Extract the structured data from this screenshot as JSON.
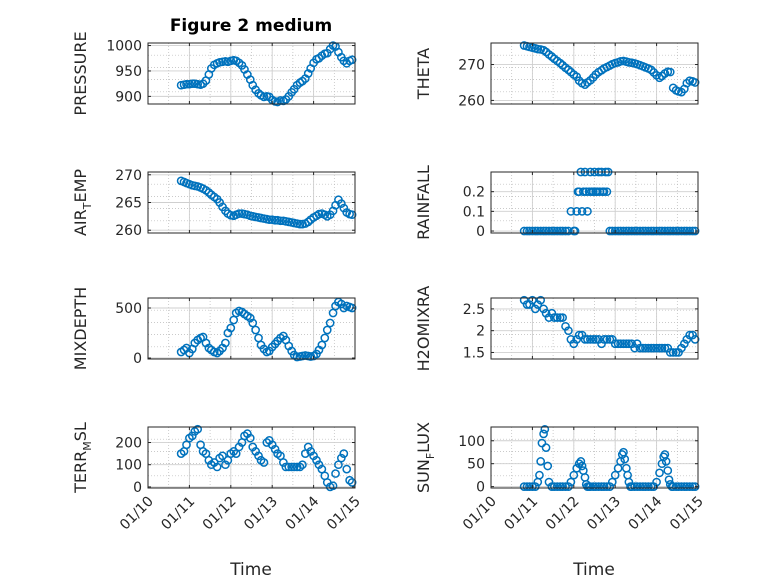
{
  "figure": {
    "title": "Figure 2 medium",
    "xlabel": "Time",
    "xticks": [
      "01/10",
      "01/11",
      "01/12",
      "01/13",
      "01/14",
      "01/15"
    ]
  },
  "colors": {
    "marker": "#0072BD",
    "axis": "#262626",
    "grid": "#b8b8b8",
    "background": "#ffffff"
  },
  "chart_data": [
    {
      "type": "scatter",
      "id": "pressure",
      "ylabel": "PRESSURE",
      "ylabel_sub": "",
      "ylabel_tail": "",
      "title": "Figure 2 medium",
      "xlim": [
        0,
        5
      ],
      "ylim": [
        885,
        1005
      ],
      "yticks": [
        900,
        950,
        1000
      ],
      "xticks_shown": false,
      "x": [
        0.8,
        0.87,
        0.93,
        1.0,
        1.07,
        1.13,
        1.2,
        1.27,
        1.33,
        1.4,
        1.47,
        1.53,
        1.6,
        1.67,
        1.73,
        1.8,
        1.87,
        1.93,
        2.0,
        2.07,
        2.13,
        2.2,
        2.27,
        2.33,
        2.4,
        2.47,
        2.53,
        2.6,
        2.67,
        2.73,
        2.8,
        2.87,
        2.93,
        3.0,
        3.07,
        3.13,
        3.2,
        3.27,
        3.33,
        3.4,
        3.47,
        3.53,
        3.6,
        3.67,
        3.73,
        3.8,
        3.87,
        3.93,
        4.0,
        4.07,
        4.13,
        4.2,
        4.27,
        4.33,
        4.4,
        4.47,
        4.53,
        4.6,
        4.67,
        4.73,
        4.8,
        4.87,
        4.93
      ],
      "y": [
        922,
        923,
        924,
        924,
        925,
        925,
        924,
        923,
        925,
        931,
        943,
        955,
        962,
        965,
        967,
        968,
        969,
        968,
        970,
        971,
        970,
        966,
        961,
        953,
        943,
        933,
        922,
        913,
        906,
        902,
        899,
        900,
        899,
        893,
        890,
        889,
        892,
        891,
        894,
        900,
        908,
        914,
        922,
        927,
        930,
        935,
        945,
        955,
        966,
        973,
        975,
        980,
        984,
        985,
        993,
        1000,
        998,
        987,
        977,
        970,
        965,
        970,
        972
      ]
    },
    {
      "type": "scatter",
      "id": "theta",
      "ylabel": "THETA",
      "ylabel_sub": "",
      "ylabel_tail": "",
      "xlim": [
        0,
        5
      ],
      "ylim": [
        259,
        276
      ],
      "yticks": [
        260,
        270
      ],
      "xticks_shown": false,
      "x": [
        0.8,
        0.87,
        0.93,
        1.0,
        1.07,
        1.13,
        1.2,
        1.27,
        1.33,
        1.4,
        1.47,
        1.53,
        1.6,
        1.67,
        1.73,
        1.8,
        1.87,
        1.93,
        2.0,
        2.07,
        2.13,
        2.2,
        2.27,
        2.33,
        2.4,
        2.47,
        2.53,
        2.6,
        2.67,
        2.73,
        2.8,
        2.87,
        2.93,
        3.0,
        3.07,
        3.13,
        3.2,
        3.27,
        3.33,
        3.4,
        3.47,
        3.53,
        3.6,
        3.67,
        3.73,
        3.8,
        3.87,
        3.93,
        4.0,
        4.07,
        4.13,
        4.2,
        4.27,
        4.33,
        4.4,
        4.47,
        4.53,
        4.6,
        4.67,
        4.73,
        4.8,
        4.87,
        4.93
      ],
      "y": [
        275.3,
        275.1,
        274.9,
        274.7,
        274.5,
        274.3,
        274.2,
        274.0,
        273.5,
        272.8,
        272.2,
        271.6,
        271.0,
        270.4,
        269.8,
        269.1,
        268.5,
        267.9,
        267.2,
        266.6,
        265.5,
        264.8,
        264.4,
        265.0,
        265.6,
        266.4,
        267.2,
        267.9,
        268.4,
        268.9,
        269.3,
        269.7,
        270.1,
        270.4,
        270.6,
        270.9,
        271.0,
        270.8,
        270.6,
        270.5,
        270.3,
        270.1,
        269.8,
        269.5,
        269.2,
        268.9,
        268.5,
        267.8,
        267.0,
        266.3,
        266.8,
        267.5,
        268.0,
        267.9,
        263.5,
        262.8,
        262.5,
        262.3,
        263.2,
        264.8,
        265.5,
        265.3,
        265.0
      ]
    },
    {
      "type": "scatter",
      "id": "air_temp",
      "ylabel": "AIR",
      "ylabel_sub": "T",
      "ylabel_tail": "EMP",
      "xlim": [
        0,
        5
      ],
      "ylim": [
        259.5,
        270.5
      ],
      "yticks": [
        260,
        265,
        270
      ],
      "xticks_shown": false,
      "x": [
        0.8,
        0.87,
        0.93,
        1.0,
        1.07,
        1.13,
        1.2,
        1.27,
        1.33,
        1.4,
        1.47,
        1.53,
        1.6,
        1.67,
        1.73,
        1.8,
        1.87,
        1.93,
        2.0,
        2.07,
        2.13,
        2.2,
        2.27,
        2.33,
        2.4,
        2.47,
        2.53,
        2.6,
        2.67,
        2.73,
        2.8,
        2.87,
        2.93,
        3.0,
        3.07,
        3.13,
        3.2,
        3.27,
        3.33,
        3.4,
        3.47,
        3.53,
        3.6,
        3.67,
        3.73,
        3.8,
        3.87,
        3.93,
        4.0,
        4.07,
        4.13,
        4.2,
        4.27,
        4.33,
        4.4,
        4.47,
        4.53,
        4.6,
        4.67,
        4.73,
        4.8,
        4.87,
        4.93
      ],
      "y": [
        268.9,
        268.7,
        268.5,
        268.3,
        268.1,
        268.0,
        267.9,
        267.7,
        267.5,
        267.2,
        266.8,
        266.4,
        266.0,
        265.6,
        265.0,
        264.2,
        263.5,
        263.0,
        262.7,
        262.6,
        262.8,
        263.0,
        263.0,
        262.9,
        262.8,
        262.6,
        262.5,
        262.4,
        262.3,
        262.2,
        262.1,
        262.0,
        261.9,
        261.9,
        261.8,
        261.8,
        261.7,
        261.7,
        261.6,
        261.5,
        261.4,
        261.3,
        261.2,
        261.1,
        261.1,
        261.2,
        261.5,
        261.9,
        262.3,
        262.6,
        262.9,
        263.0,
        262.8,
        262.5,
        262.8,
        263.5,
        264.5,
        265.5,
        264.8,
        264.0,
        263.2,
        262.9,
        262.8
      ]
    },
    {
      "type": "scatter",
      "id": "rainfall",
      "ylabel": "RAINFALL",
      "ylabel_sub": "",
      "ylabel_tail": "",
      "xlim": [
        0,
        5
      ],
      "ylim": [
        -0.01,
        0.3
      ],
      "yticks": [
        0,
        0.1,
        0.2
      ],
      "xticks_shown": false,
      "x": [
        0.8,
        0.87,
        0.93,
        1.0,
        1.07,
        1.13,
        1.2,
        1.27,
        1.33,
        1.4,
        1.47,
        1.53,
        1.6,
        1.67,
        1.73,
        1.8,
        1.87,
        1.93,
        2.0,
        2.03,
        2.07,
        2.1,
        2.13,
        2.17,
        2.2,
        2.23,
        2.27,
        2.3,
        2.33,
        2.37,
        2.4,
        2.43,
        2.47,
        2.5,
        2.53,
        2.57,
        2.6,
        2.63,
        2.67,
        2.7,
        2.73,
        2.77,
        2.8,
        2.83,
        2.87,
        2.93,
        3.0,
        3.07,
        3.13,
        3.2,
        3.27,
        3.33,
        3.4,
        3.47,
        3.53,
        3.6,
        3.67,
        3.73,
        3.8,
        3.87,
        3.93,
        4.0,
        4.07,
        4.13,
        4.2,
        4.27,
        4.33,
        4.4,
        4.47,
        4.53,
        4.6,
        4.67,
        4.73,
        4.8,
        4.87,
        4.93
      ],
      "y": [
        0,
        0,
        0,
        0,
        0,
        0,
        0,
        0,
        0,
        0,
        0,
        0,
        0,
        0,
        0,
        0,
        0,
        0.1,
        0,
        0,
        0.1,
        0.2,
        0.2,
        0.3,
        0.1,
        0.2,
        0.3,
        0.2,
        0.1,
        0.2,
        0.3,
        0.2,
        0.2,
        0.3,
        0.2,
        0.2,
        0.3,
        0.2,
        0.3,
        0.2,
        0.2,
        0.3,
        0.2,
        0.3,
        0,
        0,
        0,
        0,
        0,
        0,
        0,
        0,
        0,
        0,
        0,
        0,
        0,
        0,
        0,
        0,
        0,
        0,
        0,
        0,
        0,
        0,
        0,
        0,
        0,
        0,
        0,
        0,
        0,
        0,
        0,
        0
      ]
    },
    {
      "type": "scatter",
      "id": "mixdepth",
      "ylabel": "MIXDEPTH",
      "ylabel_sub": "",
      "ylabel_tail": "",
      "xlim": [
        0,
        5
      ],
      "ylim": [
        -10,
        600
      ],
      "yticks": [
        0,
        500
      ],
      "xticks_shown": false,
      "x": [
        0.8,
        0.87,
        0.93,
        1.0,
        1.07,
        1.13,
        1.2,
        1.27,
        1.33,
        1.4,
        1.47,
        1.53,
        1.6,
        1.67,
        1.73,
        1.8,
        1.87,
        1.93,
        2.0,
        2.07,
        2.13,
        2.2,
        2.27,
        2.33,
        2.4,
        2.47,
        2.53,
        2.6,
        2.67,
        2.73,
        2.8,
        2.87,
        2.93,
        3.0,
        3.07,
        3.13,
        3.2,
        3.27,
        3.33,
        3.4,
        3.47,
        3.53,
        3.6,
        3.67,
        3.73,
        3.8,
        3.87,
        3.93,
        4.0,
        4.07,
        4.13,
        4.2,
        4.27,
        4.33,
        4.4,
        4.47,
        4.53,
        4.6,
        4.67,
        4.73,
        4.8,
        4.87,
        4.93
      ],
      "y": [
        60,
        80,
        100,
        50,
        90,
        150,
        180,
        200,
        210,
        150,
        100,
        80,
        60,
        50,
        70,
        100,
        150,
        250,
        300,
        380,
        450,
        470,
        460,
        440,
        420,
        400,
        350,
        280,
        200,
        130,
        90,
        60,
        70,
        110,
        140,
        170,
        200,
        220,
        180,
        120,
        70,
        30,
        10,
        15,
        20,
        25,
        20,
        15,
        20,
        40,
        80,
        130,
        200,
        280,
        350,
        450,
        520,
        560,
        540,
        500,
        520,
        510,
        500
      ]
    },
    {
      "type": "scatter",
      "id": "h2omixra",
      "ylabel": "H2OMIXRA",
      "ylabel_sub": "",
      "ylabel_tail": "",
      "xlim": [
        0,
        5
      ],
      "ylim": [
        1.35,
        2.75
      ],
      "yticks": [
        1.5,
        2,
        2.5
      ],
      "xticks_shown": false,
      "x": [
        0.8,
        0.87,
        0.93,
        1.0,
        1.07,
        1.13,
        1.2,
        1.27,
        1.33,
        1.4,
        1.47,
        1.53,
        1.6,
        1.67,
        1.73,
        1.8,
        1.87,
        1.93,
        2.0,
        2.07,
        2.13,
        2.2,
        2.27,
        2.33,
        2.4,
        2.47,
        2.53,
        2.6,
        2.67,
        2.73,
        2.8,
        2.87,
        2.93,
        3.0,
        3.07,
        3.13,
        3.2,
        3.27,
        3.33,
        3.4,
        3.47,
        3.53,
        3.6,
        3.67,
        3.73,
        3.8,
        3.87,
        3.93,
        4.0,
        4.07,
        4.13,
        4.2,
        4.27,
        4.33,
        4.4,
        4.47,
        4.53,
        4.6,
        4.67,
        4.73,
        4.8,
        4.87,
        4.93
      ],
      "y": [
        2.7,
        2.6,
        2.6,
        2.7,
        2.5,
        2.6,
        2.7,
        2.5,
        2.4,
        2.3,
        2.4,
        2.3,
        2.3,
        2.3,
        2.3,
        2.1,
        2.0,
        1.8,
        1.7,
        1.8,
        1.9,
        1.9,
        1.8,
        1.8,
        1.8,
        1.8,
        1.8,
        1.8,
        1.7,
        1.8,
        1.8,
        1.8,
        1.8,
        1.7,
        1.7,
        1.7,
        1.7,
        1.7,
        1.7,
        1.7,
        1.6,
        1.7,
        1.6,
        1.6,
        1.6,
        1.6,
        1.6,
        1.6,
        1.6,
        1.6,
        1.6,
        1.6,
        1.6,
        1.5,
        1.5,
        1.5,
        1.5,
        1.6,
        1.7,
        1.8,
        1.9,
        1.9,
        1.8
      ]
    },
    {
      "type": "scatter",
      "id": "terr_msl",
      "ylabel": "TERR",
      "ylabel_sub": "M",
      "ylabel_tail": "SL",
      "xlim": [
        0,
        5
      ],
      "ylim": [
        -5,
        270
      ],
      "yticks": [
        0,
        100,
        200
      ],
      "xticks_shown": true,
      "x": [
        0.8,
        0.87,
        0.93,
        1.0,
        1.07,
        1.13,
        1.2,
        1.27,
        1.33,
        1.4,
        1.47,
        1.53,
        1.6,
        1.67,
        1.73,
        1.8,
        1.87,
        1.93,
        2.0,
        2.07,
        2.13,
        2.2,
        2.27,
        2.33,
        2.4,
        2.47,
        2.53,
        2.6,
        2.67,
        2.73,
        2.8,
        2.87,
        2.93,
        3.0,
        3.07,
        3.13,
        3.2,
        3.27,
        3.33,
        3.4,
        3.47,
        3.53,
        3.6,
        3.67,
        3.73,
        3.8,
        3.87,
        3.93,
        4.0,
        4.07,
        4.13,
        4.2,
        4.27,
        4.33,
        4.4,
        4.47,
        4.53,
        4.6,
        4.67,
        4.73,
        4.8,
        4.87,
        4.93
      ],
      "y": [
        150,
        160,
        190,
        220,
        230,
        250,
        260,
        190,
        160,
        150,
        120,
        100,
        110,
        90,
        130,
        140,
        100,
        120,
        150,
        160,
        150,
        180,
        200,
        230,
        240,
        220,
        180,
        160,
        140,
        120,
        110,
        200,
        210,
        190,
        170,
        150,
        140,
        110,
        90,
        90,
        90,
        90,
        90,
        90,
        100,
        150,
        180,
        160,
        140,
        120,
        100,
        80,
        50,
        20,
        0,
        5,
        60,
        100,
        130,
        150,
        80,
        30,
        20
      ]
    },
    {
      "type": "scatter",
      "id": "sun_flux",
      "ylabel": "SUN",
      "ylabel_sub": "F",
      "ylabel_tail": "LUX",
      "xlim": [
        0,
        5
      ],
      "ylim": [
        -3,
        130
      ],
      "yticks": [
        0,
        50,
        100
      ],
      "xticks_shown": true,
      "x": [
        0.8,
        0.87,
        0.93,
        1.0,
        1.07,
        1.13,
        1.17,
        1.2,
        1.23,
        1.27,
        1.3,
        1.33,
        1.37,
        1.4,
        1.47,
        1.53,
        1.6,
        1.67,
        1.73,
        1.8,
        1.87,
        1.93,
        2.0,
        2.07,
        2.13,
        2.17,
        2.2,
        2.23,
        2.27,
        2.3,
        2.33,
        2.37,
        2.4,
        2.47,
        2.53,
        2.6,
        2.67,
        2.73,
        2.8,
        2.87,
        2.93,
        3.0,
        3.07,
        3.13,
        3.17,
        3.2,
        3.23,
        3.27,
        3.3,
        3.33,
        3.37,
        3.4,
        3.47,
        3.53,
        3.6,
        3.67,
        3.73,
        3.8,
        3.87,
        3.93,
        4.0,
        4.07,
        4.13,
        4.17,
        4.2,
        4.23,
        4.27,
        4.3,
        4.33,
        4.37,
        4.4,
        4.47,
        4.53,
        4.6,
        4.67,
        4.73,
        4.8,
        4.87,
        4.93
      ],
      "y": [
        0,
        0,
        0,
        0,
        0,
        10,
        25,
        55,
        95,
        115,
        125,
        85,
        45,
        10,
        0,
        0,
        0,
        0,
        0,
        0,
        0,
        10,
        25,
        40,
        50,
        55,
        45,
        35,
        20,
        5,
        0,
        0,
        0,
        0,
        0,
        0,
        0,
        0,
        0,
        0,
        10,
        25,
        40,
        55,
        70,
        75,
        60,
        40,
        25,
        10,
        0,
        0,
        0,
        0,
        0,
        0,
        0,
        0,
        0,
        0,
        10,
        30,
        50,
        65,
        70,
        55,
        35,
        15,
        5,
        0,
        0,
        0,
        0,
        0,
        0,
        0,
        0,
        0,
        0
      ]
    }
  ]
}
